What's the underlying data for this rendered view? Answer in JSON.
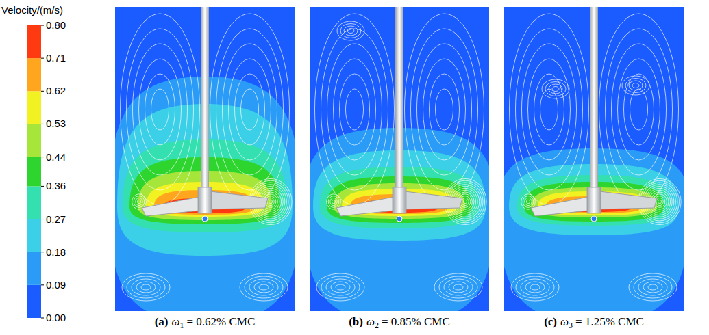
{
  "chart_data": {
    "type": "contour",
    "colorbar": {
      "title": "Velocity/(m/s)",
      "range": [
        0,
        0.8
      ],
      "ticks": [
        {
          "value": 0,
          "label": "0.00"
        },
        0.09,
        0.18,
        0.27,
        0.36,
        0.44,
        0.53,
        0.62,
        0.71,
        {
          "value": 0.8,
          "label": "0.80"
        }
      ],
      "colors": [
        "#1a5cff",
        "#2a9cf8",
        "#3ccfe8",
        "#35e0b0",
        "#2fd52f",
        "#a6e63a",
        "#f2f222",
        "#ffa51e",
        "#ff3a10"
      ]
    },
    "panels": [
      {
        "letter": "(a)",
        "symbol": "ω",
        "index": "1",
        "text": "= 0.62% CMC",
        "levels": [
          0.09,
          0.18,
          0.27,
          0.36,
          0.44,
          0.53,
          0.62,
          0.71
        ]
      },
      {
        "letter": "(b)",
        "symbol": "ω",
        "index": "2",
        "text": "= 0.85% CMC",
        "levels": [
          0.09,
          0.18,
          0.27,
          0.36,
          0.44,
          0.53,
          0.62,
          0.71
        ]
      },
      {
        "letter": "(c)",
        "symbol": "ω",
        "index": "3",
        "text": "= 1.25% CMC",
        "levels": [
          0.09,
          0.18,
          0.27,
          0.36,
          0.44,
          0.53,
          0.62,
          0.71
        ]
      }
    ]
  }
}
